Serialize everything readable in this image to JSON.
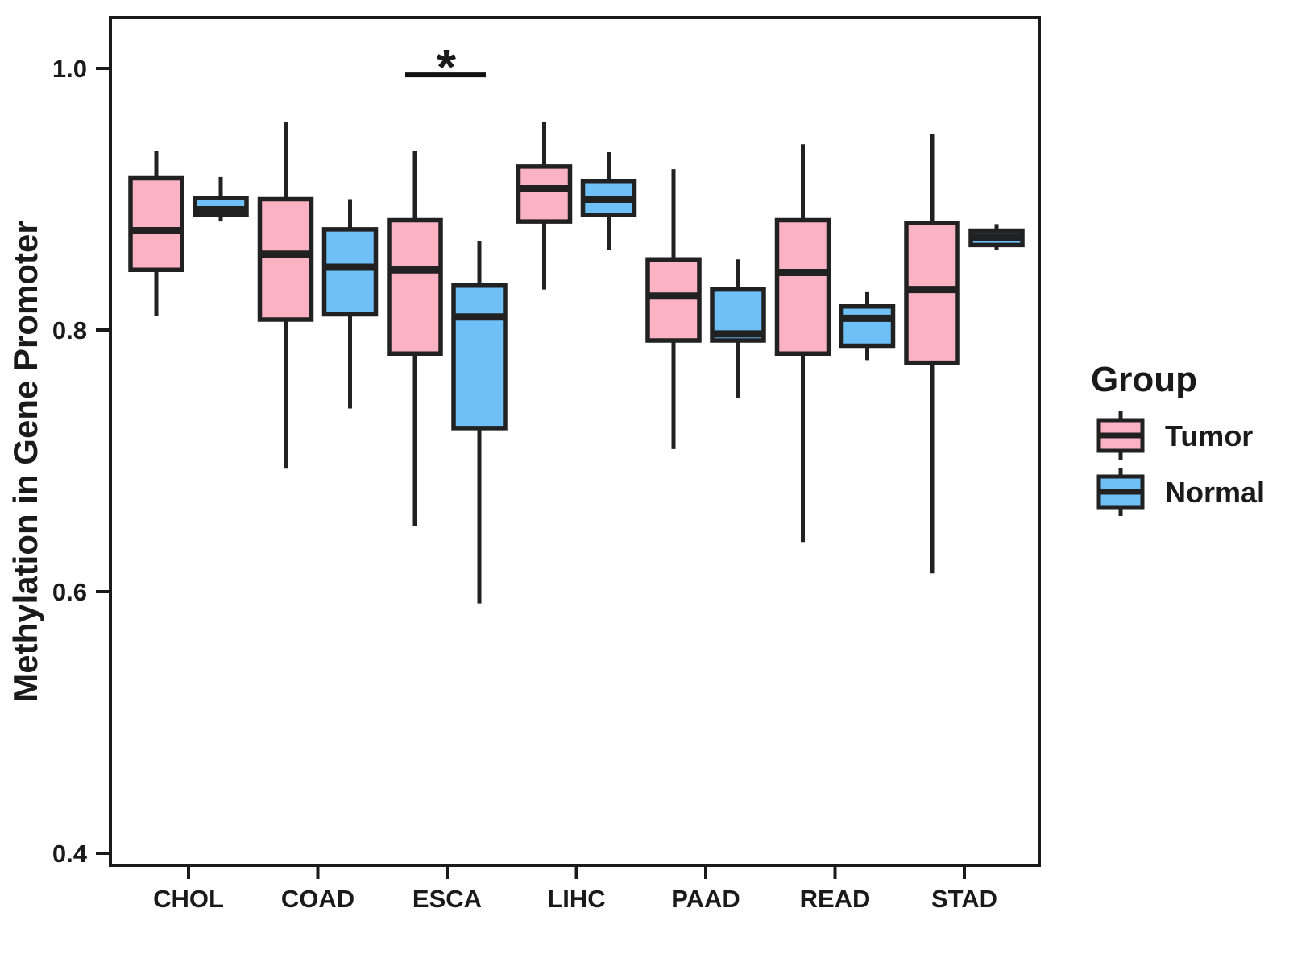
{
  "chart_data": {
    "type": "boxplot",
    "title": "",
    "xlabel": "",
    "ylabel": "Methylation in Gene Promoter",
    "ylim": [
      0.4,
      1.0
    ],
    "grid": false,
    "y_axis": {
      "ticks": [
        {
          "label": "1.0",
          "value": 1.0
        },
        {
          "label": "0.8",
          "value": 0.8
        },
        {
          "label": "0.6",
          "value": 0.6
        },
        {
          "label": "0.4",
          "value": 0.4
        }
      ]
    },
    "categories": [
      "CHOL",
      "COAD",
      "ESCA",
      "LIHC",
      "PAAD",
      "READ",
      "STAD"
    ],
    "series": [
      {
        "name": "Tumor",
        "color": "#FBB2C3",
        "stat_order": [
          "min",
          "q1",
          "median",
          "q3",
          "max"
        ],
        "values": [
          [
            0.811,
            0.846,
            0.876,
            0.916,
            0.937
          ],
          [
            0.694,
            0.808,
            0.858,
            0.9,
            0.959
          ],
          [
            0.65,
            0.782,
            0.846,
            0.884,
            0.937
          ],
          [
            0.831,
            0.883,
            0.908,
            0.925,
            0.959
          ],
          [
            0.709,
            0.792,
            0.826,
            0.854,
            0.923
          ],
          [
            0.638,
            0.782,
            0.844,
            0.884,
            0.942
          ],
          [
            0.614,
            0.775,
            0.831,
            0.882,
            0.95
          ]
        ]
      },
      {
        "name": "Normal",
        "color": "#6EC0F6",
        "stat_order": [
          "min",
          "q1",
          "median",
          "q3",
          "max"
        ],
        "values": [
          [
            0.883,
            0.888,
            0.892,
            0.901,
            0.917
          ],
          [
            0.74,
            0.812,
            0.848,
            0.877,
            0.9
          ],
          [
            0.591,
            0.725,
            0.81,
            0.834,
            0.868
          ],
          [
            0.861,
            0.888,
            0.9,
            0.914,
            0.936
          ],
          [
            0.748,
            0.792,
            0.797,
            0.831,
            0.854
          ],
          [
            0.777,
            0.788,
            0.809,
            0.818,
            0.829
          ],
          [
            0.861,
            0.865,
            0.871,
            0.876,
            0.881
          ]
        ]
      }
    ],
    "legend": {
      "title": "Group",
      "position": "right",
      "entries": [
        {
          "label": "Tumor",
          "color": "#FBB2C3"
        },
        {
          "label": "Normal",
          "color": "#6EC0F6"
        }
      ]
    },
    "significance": {
      "label": "*",
      "category": "ESCA",
      "between": [
        "Tumor",
        "Normal"
      ],
      "bar_value": 0.995
    }
  }
}
